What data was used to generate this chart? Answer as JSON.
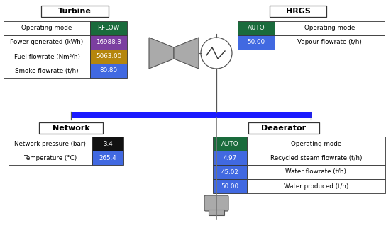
{
  "turbine_title": "Turbine",
  "hrgs_title": "HRGS",
  "network_title": "Network",
  "deaerator_title": "Deaerator",
  "turbine_rows": [
    {
      "label": "Operating mode",
      "value": "RFLOW",
      "color": "#1a6b3c"
    },
    {
      "label": "Power generated (kWh)",
      "value": "16988.3",
      "color": "#7b3fa0"
    },
    {
      "label": "Fuel flowrate (Nm³/h)",
      "value": "5063.00",
      "color": "#b5860d"
    },
    {
      "label": "Smoke flowrate (t/h)",
      "value": "80.80",
      "color": "#4169e1"
    }
  ],
  "hrgs_rows": [
    {
      "label": "Operating mode",
      "value": "AUTO",
      "color": "#1a6b3c"
    },
    {
      "label": "Vapour flowrate (t/h)",
      "value": "50.00",
      "color": "#4169e1"
    }
  ],
  "network_rows": [
    {
      "label": "Network pressure (bar)",
      "value": "3.4",
      "color": "#111111"
    },
    {
      "label": "Temperature (°C)",
      "value": "265.4",
      "color": "#4169e1"
    }
  ],
  "deaerator_rows": [
    {
      "label": "Operating mode",
      "value": "AUTO",
      "color": "#1a6b3c"
    },
    {
      "label": "Recycled steam flowrate (t/h)",
      "value": "4.97",
      "color": "#4169e1"
    },
    {
      "label": "Water flowrate (t/h)",
      "value": "45.02",
      "color": "#4169e1"
    },
    {
      "label": "Water produced (t/h)",
      "value": "50.00",
      "color": "#4169e1"
    }
  ],
  "bg_color": "#ffffff",
  "text_color": "#000000",
  "value_text_color": "#ffffff",
  "border_color": "#333333",
  "blue_bar_color": "#1a1aff"
}
